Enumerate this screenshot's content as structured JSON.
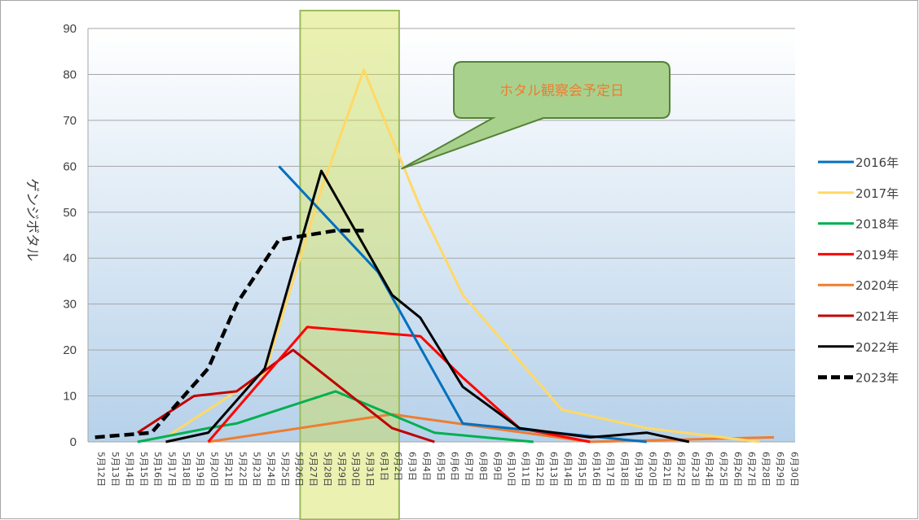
{
  "chart_data": {
    "type": "line",
    "title": "",
    "xlabel": "",
    "ylabel": "ゲンジボタル",
    "ylim": [
      0,
      90
    ],
    "yticks": [
      0,
      10,
      20,
      30,
      40,
      50,
      60,
      70,
      80,
      90
    ],
    "grid": true,
    "legend": "right",
    "categories": [
      "5月12日",
      "5月13日",
      "5月14日",
      "5月15日",
      "5月16日",
      "5月17日",
      "5月18日",
      "5月19日",
      "5月20日",
      "5月21日",
      "5月22日",
      "5月23日",
      "5月24日",
      "5月25日",
      "5月26日",
      "5月27日",
      "5月28日",
      "5月29日",
      "5月30日",
      "5月31日",
      "6月1日",
      "6月2日",
      "6月3日",
      "6月4日",
      "6月5日",
      "6月6日",
      "6月7日",
      "6月8日",
      "6月9日",
      "6月10日",
      "6月11日",
      "6月12日",
      "6月13日",
      "6月14日",
      "6月15日",
      "6月16日",
      "6月17日",
      "6月18日",
      "6月19日",
      "6月20日",
      "6月21日",
      "6月22日",
      "6月23日",
      "6月24日",
      "6月25日",
      "6月26日",
      "6月27日",
      "6月28日",
      "6月29日",
      "6月30日"
    ],
    "highlight": {
      "from": "5月27日",
      "to": "6月2日",
      "color": "#ccdd44"
    },
    "annotation": {
      "text": "ホタル観察会予定日",
      "point_to": {
        "x": "6月3日",
        "y": 63
      }
    },
    "series": [
      {
        "name": "2016年",
        "color": "#0070c0",
        "dash": false,
        "points": [
          [
            "5月25日",
            60
          ],
          [
            "6月1日",
            37
          ],
          [
            "6月7日",
            4
          ],
          [
            "6月20日",
            0
          ]
        ]
      },
      {
        "name": "2017年",
        "color": "#ffd966",
        "dash": false,
        "points": [
          [
            "5月17日",
            1
          ],
          [
            "5月22日",
            11
          ],
          [
            "5月24日",
            15
          ],
          [
            "5月28日",
            55
          ],
          [
            "5月31日",
            81
          ],
          [
            "6月4日",
            51
          ],
          [
            "6月7日",
            32
          ],
          [
            "6月14日",
            7
          ],
          [
            "6月20日",
            3
          ],
          [
            "6月28日",
            0
          ]
        ]
      },
      {
        "name": "2018年",
        "color": "#00b050",
        "dash": false,
        "points": [
          [
            "5月15日",
            0
          ],
          [
            "5月20日",
            3
          ],
          [
            "5月22日",
            4
          ],
          [
            "5月29日",
            11
          ],
          [
            "6月5日",
            2
          ],
          [
            "6月12日",
            0
          ]
        ]
      },
      {
        "name": "2019年",
        "color": "#ff0000",
        "dash": false,
        "points": [
          [
            "5月20日",
            0
          ],
          [
            "5月27日",
            25
          ],
          [
            "6月4日",
            23
          ],
          [
            "6月7日",
            14
          ],
          [
            "6月11日",
            3
          ],
          [
            "6月16日",
            0
          ]
        ]
      },
      {
        "name": "2020年",
        "color": "#ed7d31",
        "dash": false,
        "points": [
          [
            "5月20日",
            0
          ],
          [
            "6月2日",
            6
          ],
          [
            "6月16日",
            0
          ],
          [
            "6月29日",
            1
          ]
        ]
      },
      {
        "name": "2021年",
        "color": "#c00000",
        "dash": false,
        "points": [
          [
            "5月15日",
            2
          ],
          [
            "5月19日",
            10
          ],
          [
            "5月22日",
            11
          ],
          [
            "5月26日",
            20
          ],
          [
            "6月2日",
            3
          ],
          [
            "6月5日",
            0
          ]
        ]
      },
      {
        "name": "2022年",
        "color": "#000000",
        "dash": false,
        "points": [
          [
            "5月17日",
            0
          ],
          [
            "5月20日",
            2
          ],
          [
            "5月22日",
            9
          ],
          [
            "5月24日",
            16
          ],
          [
            "5月28日",
            59
          ],
          [
            "6月2日",
            32
          ],
          [
            "6月4日",
            27
          ],
          [
            "6月7日",
            12
          ],
          [
            "6月11日",
            3
          ],
          [
            "6月16日",
            1
          ],
          [
            "6月20日",
            2
          ],
          [
            "6月23日",
            0
          ]
        ]
      },
      {
        "name": "2023年",
        "color": "#000000",
        "dash": true,
        "points": [
          [
            "5月12日",
            1
          ],
          [
            "5月16日",
            2
          ],
          [
            "5月20日",
            16
          ],
          [
            "5月22日",
            30
          ],
          [
            "5月25日",
            44
          ],
          [
            "5月29日",
            46
          ],
          [
            "5月31日",
            46
          ]
        ]
      }
    ]
  }
}
